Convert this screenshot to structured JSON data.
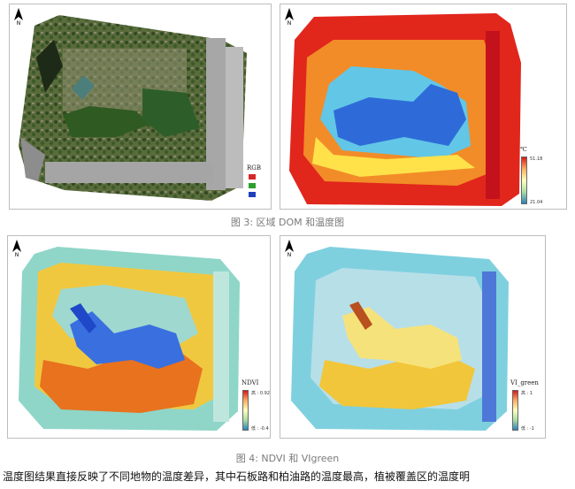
{
  "figures": {
    "rgb": {
      "legend_title": "RGB",
      "band_colors": [
        "#d62728",
        "#2ca02c",
        "#1f3fbf"
      ]
    },
    "temperature": {
      "legend_unit": "℃",
      "max": "51.18",
      "min": "21.04"
    },
    "ndvi": {
      "legend_title": "NDVI",
      "max": "高 : 0.92",
      "min": "低 : -0.4"
    },
    "vigreen": {
      "legend_title": "VI_green",
      "max": "高 : 1",
      "min": "低 : -1"
    },
    "north_label": "N"
  },
  "captions": {
    "fig3": "图 3:  区域 DOM 和温度图",
    "fig4": "图 4:  NDVI 和 VIgreen"
  },
  "paragraph": "温度图结果直接反映了不同地物的温度差异，其中石板路和柏油路的温度最高，植被覆盖区的温度明",
  "colors": {
    "hot": "#e1261c",
    "warm": "#f28c28",
    "mid": "#ffe24a",
    "cool": "#62c6e6",
    "cold": "#2e6bd9",
    "vegetation": "#3f6b2a",
    "road": "#9a9a9a"
  }
}
